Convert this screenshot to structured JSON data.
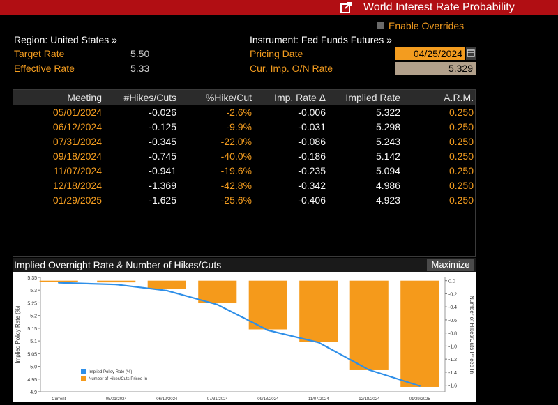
{
  "window": {
    "title": "World Interest Rate Probability",
    "accent": "#b10e13"
  },
  "header": {
    "region_label": "Region: United States »",
    "enable_overrides": "Enable Overrides",
    "instrument_label": "Instrument: Fed Funds Futures »",
    "target_rate_label": "Target Rate",
    "target_rate_value": "5.50",
    "effective_rate_label": "Effective Rate",
    "effective_rate_value": "5.33",
    "pricing_date_label": "Pricing Date",
    "pricing_date_value": "04/25/2024",
    "cur_imp_label": "Cur. Imp. O/N Rate",
    "cur_imp_value": "5.329"
  },
  "table": {
    "columns": [
      "Meeting",
      "#Hikes/Cuts",
      "%Hike/Cut",
      "Imp. Rate Δ",
      "Implied Rate",
      "A.R.M."
    ],
    "rows": [
      [
        "05/01/2024",
        "-0.026",
        "-2.6%",
        "-0.006",
        "5.322",
        "0.250"
      ],
      [
        "06/12/2024",
        "-0.125",
        "-9.9%",
        "-0.031",
        "5.298",
        "0.250"
      ],
      [
        "07/31/2024",
        "-0.345",
        "-22.0%",
        "-0.086",
        "5.243",
        "0.250"
      ],
      [
        "09/18/2024",
        "-0.745",
        "-40.0%",
        "-0.186",
        "5.142",
        "0.250"
      ],
      [
        "11/07/2024",
        "-0.941",
        "-19.6%",
        "-0.235",
        "5.094",
        "0.250"
      ],
      [
        "12/18/2024",
        "-1.369",
        "-42.8%",
        "-0.342",
        "4.986",
        "0.250"
      ],
      [
        "01/29/2025",
        "-1.625",
        "-25.6%",
        "-0.406",
        "4.923",
        "0.250"
      ]
    ]
  },
  "chart_panel": {
    "title": "Implied Overnight Rate & Number of Hikes/Cuts",
    "maximize_label": "Maximize"
  },
  "chart_data": {
    "type": "bar",
    "categories": [
      "Current",
      "05/01/2024",
      "06/12/2024",
      "07/31/2024",
      "09/18/2024",
      "11/07/2024",
      "12/18/2024",
      "01/29/2025"
    ],
    "series": [
      {
        "name": "Implied Policy Rate (%)",
        "kind": "line",
        "axis": "left",
        "color": "#2f8fe8",
        "values": [
          5.329,
          5.322,
          5.298,
          5.243,
          5.142,
          5.094,
          4.986,
          4.923
        ]
      },
      {
        "name": "Number of Hikes/Cuts Priced In",
        "kind": "bar",
        "axis": "right",
        "color": "#f59a1b",
        "values": [
          0,
          -0.026,
          -0.125,
          -0.345,
          -0.745,
          -0.941,
          -1.369,
          -1.625
        ]
      }
    ],
    "ylabel": "Implied Policy Rate (%)",
    "y2label": "Number of Hikes/Cuts Priced In",
    "ylim": [
      4.9,
      5.35
    ],
    "yticks": [
      "5.35",
      "5.3",
      "5.25",
      "5.2",
      "5.15",
      "5.1",
      "5.05",
      "5.0",
      "4.95",
      "4.9"
    ],
    "y2lim": [
      -1.7,
      0.05
    ],
    "y2ticks": [
      "0.0",
      "-0.2",
      "-0.4",
      "-0.6",
      "-0.8",
      "-1.0",
      "-1.2",
      "-1.4",
      "-1.6"
    ],
    "legend_position": "bottom-left"
  }
}
